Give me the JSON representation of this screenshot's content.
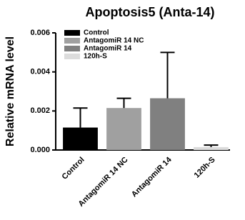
{
  "chart_data": {
    "type": "bar",
    "title": "Apoptosis5 (Anta-14)",
    "y_label": "Relative mRNA level",
    "categories": [
      "Control",
      "AntagomiR 14 NC",
      "AntagomiR 14",
      "120h-S"
    ],
    "values": [
      0.00115,
      0.00215,
      0.00265,
      0.00015
    ],
    "errors": [
      0.001,
      0.0005,
      0.00235,
      0.0001
    ],
    "colors": [
      "#000000",
      "#a0a0a0",
      "#808080",
      "#dcdcdc"
    ],
    "ylim": [
      0,
      0.006
    ],
    "yticks": [
      {
        "value": 0,
        "label": "0.000"
      },
      0.002,
      0.004,
      0.006
    ],
    "legend": "upper left"
  }
}
